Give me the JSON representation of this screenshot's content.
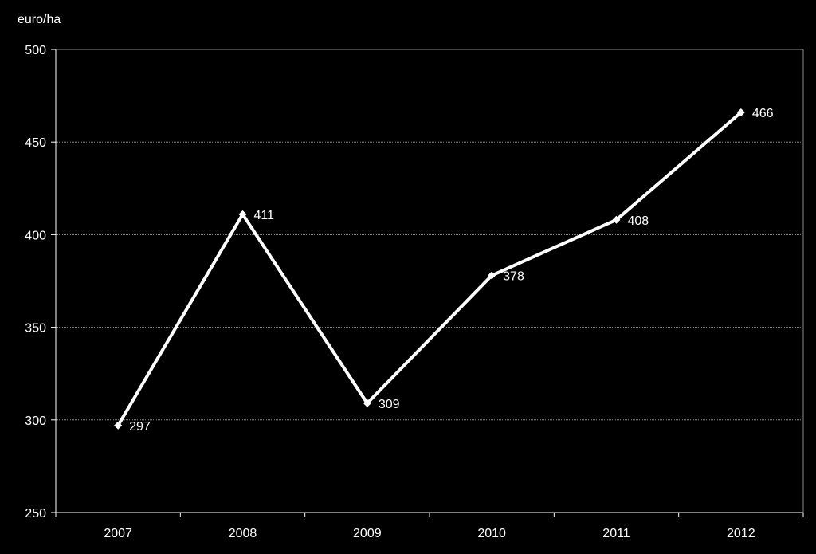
{
  "chart_data": {
    "type": "line",
    "ylabel": "euro/ha",
    "categories": [
      "2007",
      "2008",
      "2009",
      "2010",
      "2011",
      "2012"
    ],
    "series": [
      {
        "values": [
          297,
          411,
          309,
          378,
          408,
          466
        ]
      }
    ],
    "data_labels": [
      "297",
      "411",
      "309",
      "378",
      "408",
      "466"
    ],
    "ylim": [
      250,
      500
    ],
    "yticks": [
      "250",
      "300",
      "350",
      "400",
      "450",
      "500"
    ],
    "grid": true,
    "colors": {
      "background": "#000000",
      "line": "#ffffff",
      "grid": "#8c8c8c",
      "axis": "#ffffff"
    }
  }
}
